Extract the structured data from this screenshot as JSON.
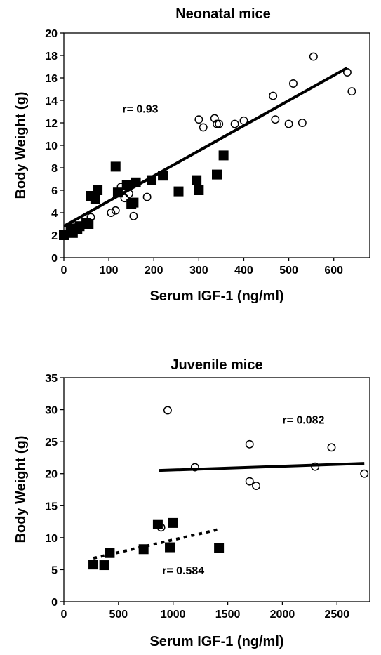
{
  "chart_data": [
    {
      "type": "scatter",
      "title": "Neonatal mice",
      "xlabel": "Serum IGF-1 (ng/ml)",
      "ylabel": "Body Weight (g)",
      "xlim": [
        0,
        680
      ],
      "ylim": [
        0,
        20
      ],
      "xticks": [
        0,
        100,
        200,
        300,
        400,
        500,
        600
      ],
      "yticks": [
        0,
        2,
        4,
        6,
        8,
        10,
        12,
        14,
        16,
        18,
        20
      ],
      "grid": false,
      "annotations": [
        {
          "text": "r= 0.93",
          "x": 130,
          "y": 12.9
        }
      ],
      "series": [
        {
          "marker": "open-circle",
          "points": [
            [
              60,
              3.6
            ],
            [
              105,
              4.0
            ],
            [
              115,
              4.2
            ],
            [
              127,
              6.3
            ],
            [
              135,
              5.3
            ],
            [
              145,
              5.7
            ],
            [
              155,
              3.7
            ],
            [
              185,
              5.4
            ],
            [
              300,
              12.3
            ],
            [
              310,
              11.6
            ],
            [
              335,
              12.4
            ],
            [
              340,
              11.9
            ],
            [
              345,
              11.9
            ],
            [
              380,
              11.9
            ],
            [
              400,
              12.2
            ],
            [
              465,
              14.4
            ],
            [
              470,
              12.3
            ],
            [
              500,
              11.9
            ],
            [
              510,
              15.5
            ],
            [
              530,
              12.0
            ],
            [
              555,
              17.9
            ],
            [
              630,
              16.5
            ],
            [
              640,
              14.8
            ]
          ],
          "fit_line": [
            [
              0,
              2.8
            ],
            [
              630,
              16.9
            ]
          ]
        },
        {
          "marker": "filled-square",
          "points": [
            [
              0,
              2.0
            ],
            [
              15,
              2.6
            ],
            [
              20,
              2.2
            ],
            [
              30,
              2.5
            ],
            [
              35,
              2.8
            ],
            [
              50,
              3.1
            ],
            [
              55,
              3.0
            ],
            [
              60,
              5.5
            ],
            [
              70,
              5.2
            ],
            [
              75,
              6.0
            ],
            [
              115,
              8.1
            ],
            [
              120,
              5.8
            ],
            [
              140,
              6.5
            ],
            [
              150,
              4.8
            ],
            [
              155,
              4.9
            ],
            [
              160,
              6.7
            ],
            [
              195,
              6.9
            ],
            [
              220,
              7.3
            ],
            [
              255,
              5.9
            ],
            [
              295,
              6.9
            ],
            [
              300,
              6.0
            ],
            [
              340,
              7.4
            ],
            [
              355,
              9.1
            ]
          ]
        }
      ]
    },
    {
      "type": "scatter",
      "title": "Juvenile mice",
      "xlabel": "Serum IGF-1 (ng/ml)",
      "ylabel": "Body Weight (g)",
      "xlim": [
        0,
        2800
      ],
      "ylim": [
        0,
        35
      ],
      "xticks": [
        0,
        500,
        1000,
        1500,
        2000,
        2500
      ],
      "yticks": [
        0,
        5,
        10,
        15,
        20,
        25,
        30,
        35
      ],
      "grid": false,
      "annotations": [
        {
          "text": "r= 0.082",
          "x": 2000,
          "y": 27.8
        },
        {
          "text": "r= 0.584",
          "x": 900,
          "y": 4.3
        }
      ],
      "series": [
        {
          "marker": "open-circle",
          "points": [
            [
              950,
              29.9
            ],
            [
              890,
              11.6
            ],
            [
              1200,
              21.0
            ],
            [
              1700,
              24.6
            ],
            [
              1700,
              18.8
            ],
            [
              1760,
              18.1
            ],
            [
              2300,
              21.1
            ],
            [
              2450,
              24.1
            ],
            [
              2750,
              20.0
            ]
          ],
          "fit_line": [
            [
              870,
              20.5
            ],
            [
              2750,
              21.6
            ]
          ],
          "fit_style": "solid"
        },
        {
          "marker": "filled-square",
          "points": [
            [
              270,
              5.8
            ],
            [
              370,
              5.7
            ],
            [
              420,
              7.6
            ],
            [
              730,
              8.2
            ],
            [
              860,
              12.1
            ],
            [
              970,
              8.5
            ],
            [
              1000,
              12.3
            ],
            [
              1420,
              8.4
            ]
          ],
          "fit_line": [
            [
              270,
              6.8
            ],
            [
              1420,
              11.3
            ]
          ],
          "fit_style": "dotted"
        }
      ]
    }
  ]
}
